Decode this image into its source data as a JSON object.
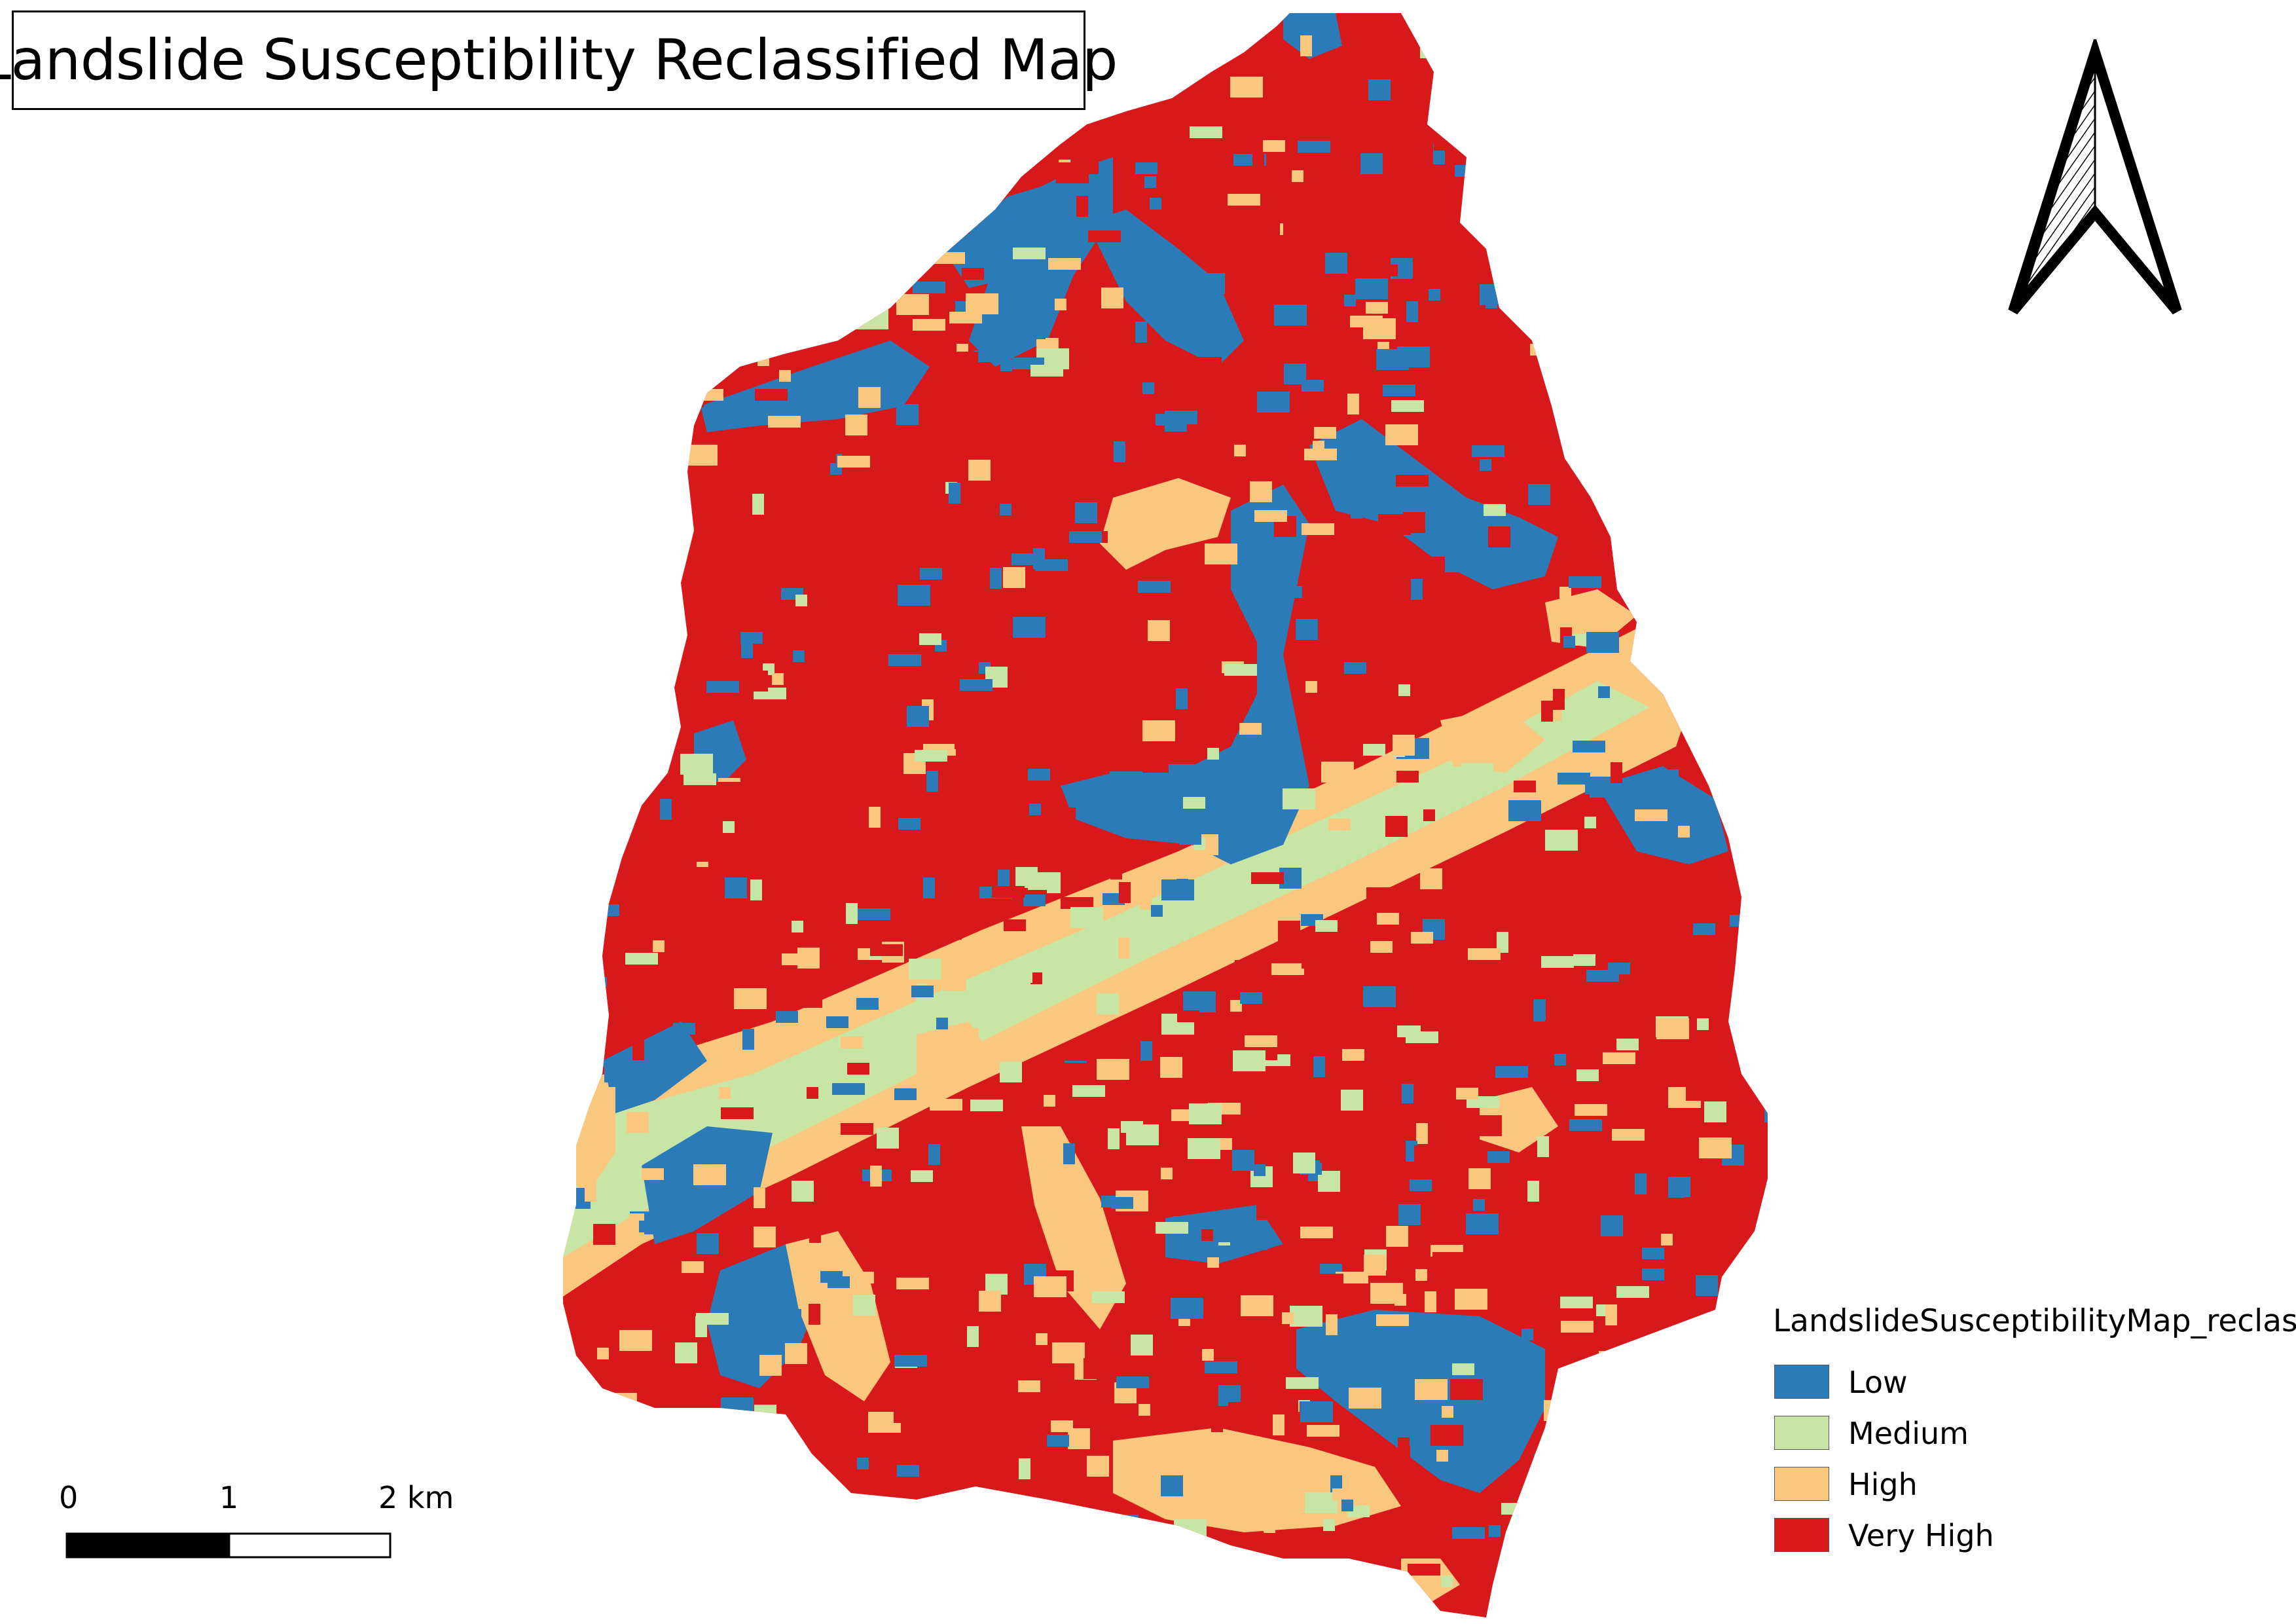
{
  "title": "Landslide Susceptibility Reclassified Map",
  "legend": {
    "title": "LandslideSusceptibilityMap_reclass",
    "items": [
      {
        "label": "Low",
        "color": "#2b7bb9"
      },
      {
        "label": "Medium",
        "color": "#c7e6a5"
      },
      {
        "label": "High",
        "color": "#fac77f"
      },
      {
        "label": "Very High",
        "color": "#d7191c"
      }
    ]
  },
  "scalebar": {
    "labels": [
      "0",
      "1",
      "2 km"
    ]
  }
}
